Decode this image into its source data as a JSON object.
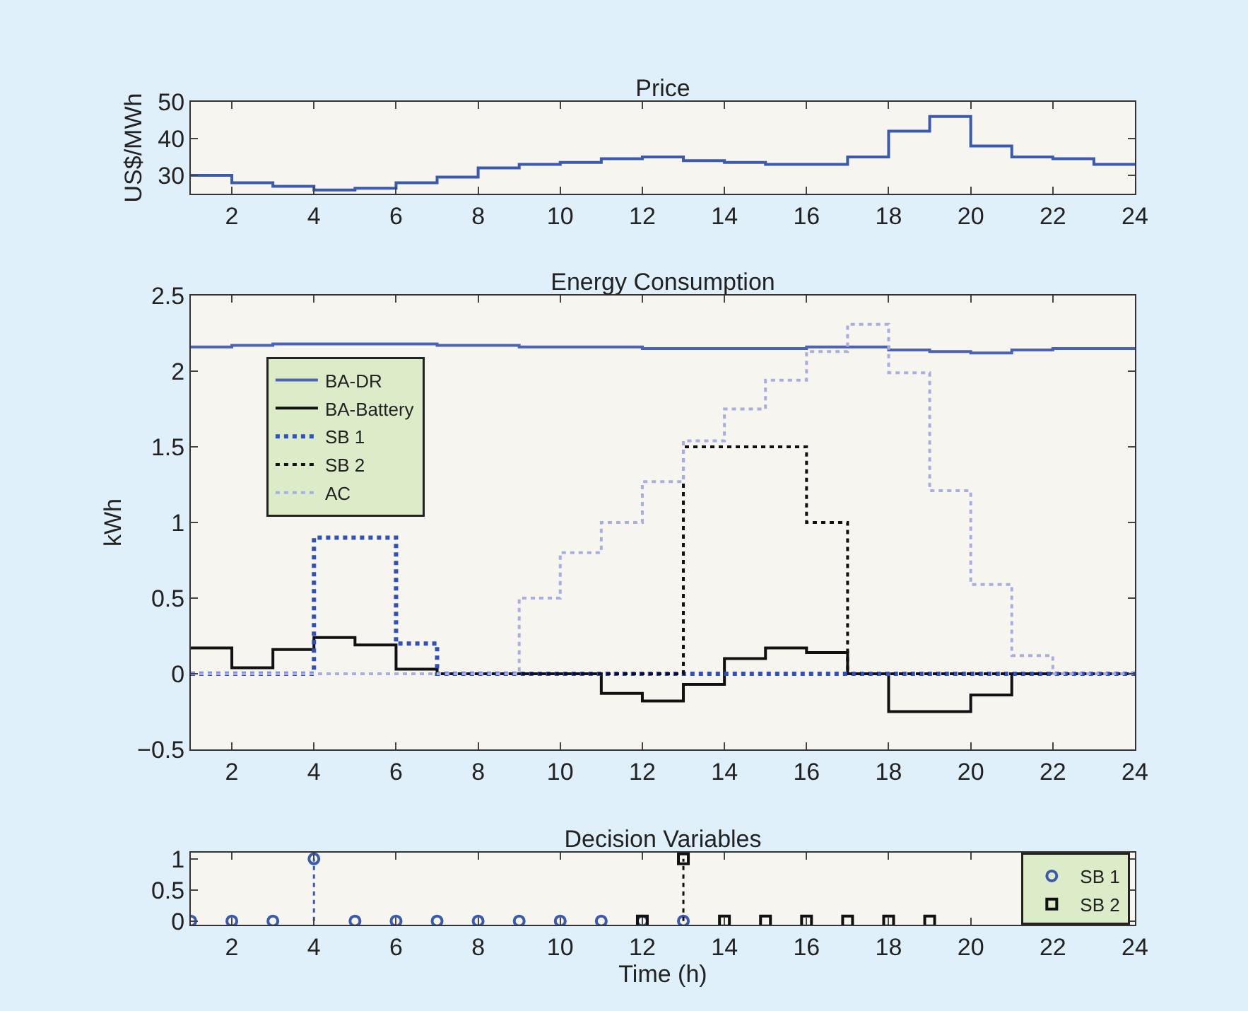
{
  "chart_data": [
    {
      "type": "step",
      "title": "Price",
      "ylabel": "US$/MWh",
      "x": [
        1,
        2,
        3,
        4,
        5,
        6,
        7,
        8,
        9,
        10,
        11,
        12,
        13,
        14,
        15,
        16,
        17,
        18,
        19,
        20,
        21,
        22,
        23,
        24
      ],
      "xlim": [
        1,
        24
      ],
      "xticks": [
        2,
        4,
        6,
        8,
        10,
        12,
        14,
        16,
        18,
        20,
        22,
        24
      ],
      "ylim": [
        25,
        50
      ],
      "yticks": [
        30,
        40,
        50
      ],
      "grid": false,
      "legend": false,
      "series": [
        {
          "color": "#3a5ab0",
          "line_style": "solid",
          "values": [
            30,
            28,
            27,
            26,
            26.5,
            28,
            29.5,
            32,
            33,
            33.5,
            34.5,
            35,
            34,
            33.5,
            33,
            33,
            35,
            42,
            46,
            38,
            35,
            34.5,
            33,
            33
          ]
        }
      ]
    },
    {
      "type": "step",
      "title": "Energy Consumption",
      "ylabel": "kWh",
      "x": [
        1,
        2,
        3,
        4,
        5,
        6,
        7,
        8,
        9,
        10,
        11,
        12,
        13,
        14,
        15,
        16,
        17,
        18,
        19,
        20,
        21,
        22,
        23,
        24
      ],
      "xlim": [
        1,
        24
      ],
      "xticks": [
        2,
        4,
        6,
        8,
        10,
        12,
        14,
        16,
        18,
        20,
        22,
        24
      ],
      "ylim": [
        -0.5,
        2.5
      ],
      "yticks": [
        {
          "value": -0.5,
          "label": "−0.5"
        },
        0,
        0.5,
        1,
        1.5,
        2,
        2.5
      ],
      "grid": false,
      "legend": "top left",
      "series": [
        {
          "name": "BA-DR",
          "color": "#4a62b8",
          "line_style": "solid",
          "values": [
            2.16,
            2.17,
            2.18,
            2.18,
            2.18,
            2.18,
            2.17,
            2.17,
            2.16,
            2.16,
            2.16,
            2.15,
            2.15,
            2.15,
            2.15,
            2.16,
            2.16,
            2.14,
            2.13,
            2.12,
            2.14,
            2.15,
            2.15,
            2.15
          ]
        },
        {
          "name": "BA-Battery",
          "color": "#111111",
          "line_style": "solid",
          "values": [
            0.17,
            0.04,
            0.16,
            0.24,
            0.19,
            0.03,
            0,
            0,
            0,
            0,
            -0.13,
            -0.18,
            -0.07,
            0.1,
            0.17,
            0.14,
            0,
            -0.25,
            -0.25,
            -0.14,
            0,
            0,
            0,
            0
          ]
        },
        {
          "name": "SB 1",
          "color": "#3050c0",
          "line_style": "dashed",
          "values": [
            0,
            0,
            0,
            0.9,
            0.9,
            0.2,
            0,
            0,
            0,
            0,
            0,
            0,
            0,
            0,
            0,
            0,
            0,
            0,
            0,
            0,
            0,
            0,
            0,
            0
          ]
        },
        {
          "name": "SB 2",
          "color": "#111111",
          "line_style": "dotted",
          "values": [
            0,
            0,
            0,
            0,
            0,
            0,
            0,
            0,
            0,
            0,
            0,
            0,
            1.5,
            1.5,
            1.5,
            1.0,
            0,
            0,
            0,
            0,
            0,
            0,
            0,
            0
          ]
        },
        {
          "name": "AC",
          "color": "#a8aee0",
          "line_style": "dotted",
          "values": [
            0,
            0,
            0,
            0,
            0,
            0,
            0,
            0,
            0.5,
            0.8,
            1.0,
            1.27,
            1.54,
            1.75,
            1.94,
            2.13,
            2.31,
            1.99,
            1.21,
            0.59,
            0.12,
            0,
            0,
            0
          ]
        }
      ]
    },
    {
      "type": "lollipop",
      "title": "Decision Variables",
      "xlabel": "Time (h)",
      "xlim": [
        1,
        24
      ],
      "xticks": [
        2,
        4,
        6,
        8,
        10,
        12,
        14,
        16,
        18,
        20,
        22,
        24
      ],
      "ylim": [
        -0.06,
        1.1
      ],
      "yticks": [
        0,
        0.5,
        1
      ],
      "grid": false,
      "legend": "right",
      "series": [
        {
          "name": "SB 1",
          "color": "#3a5ab0",
          "marker": "circle",
          "line_style": "dashed",
          "x": [
            1,
            2,
            3,
            4,
            5,
            6,
            7,
            8,
            9,
            10,
            11,
            12,
            13
          ],
          "values": [
            0,
            0,
            0,
            1,
            0,
            0,
            0,
            0,
            0,
            0,
            0,
            0,
            0
          ]
        },
        {
          "name": "SB 2",
          "color": "#111111",
          "marker": "square",
          "line_style": "dotted",
          "x": [
            12,
            13,
            14,
            15,
            16,
            17,
            18,
            19
          ],
          "values": [
            0,
            1,
            0,
            0,
            0,
            0,
            0,
            0
          ]
        }
      ]
    }
  ]
}
